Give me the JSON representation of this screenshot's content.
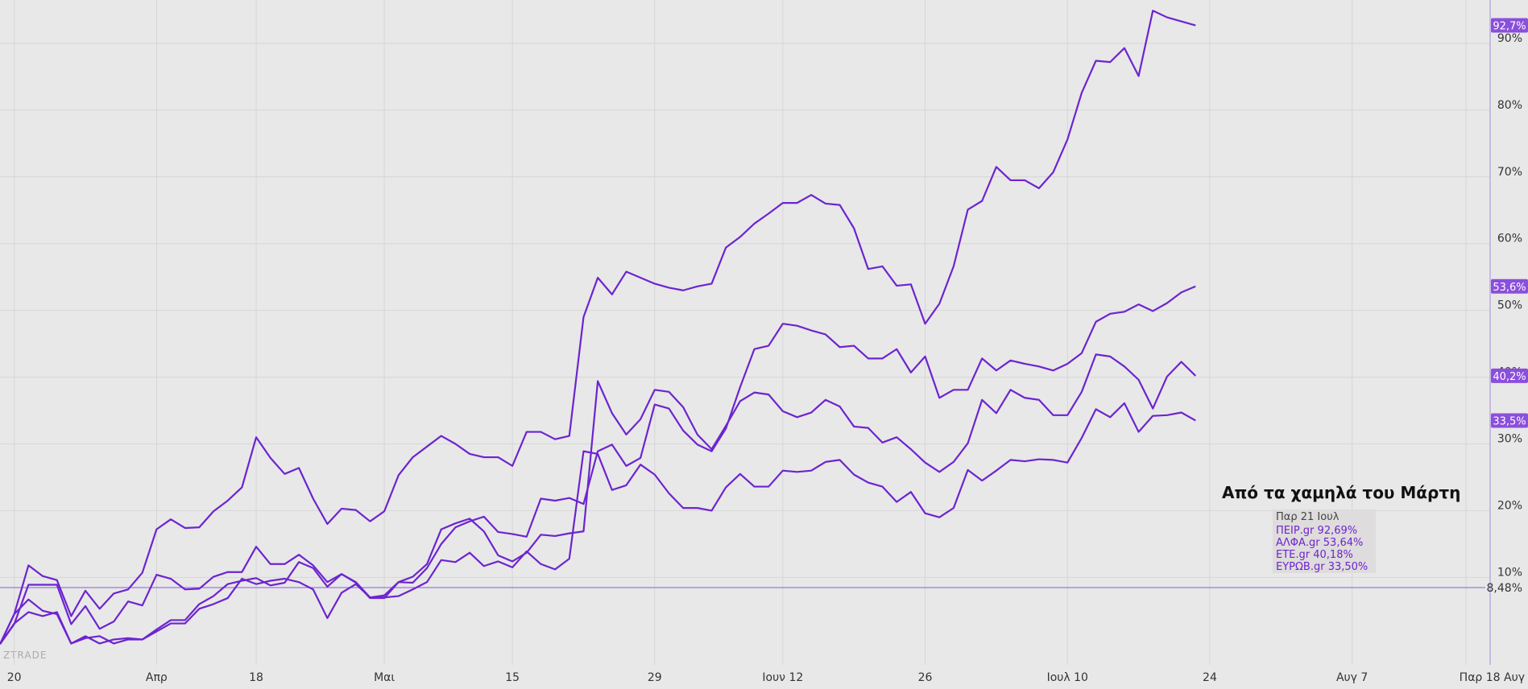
{
  "chart_data": {
    "type": "line",
    "title": "Από τα χαμηλά του Μάρτη",
    "date_label": "Παρ 21 Ιουλ",
    "watermark": "ZTRADE",
    "categories": [
      null,
      "20",
      null,
      null,
      null,
      null,
      null,
      null,
      null,
      null,
      null,
      "Απρ",
      null,
      null,
      null,
      null,
      null,
      null,
      "18",
      null,
      null,
      null,
      null,
      null,
      null,
      null,
      null,
      "Μαι",
      null,
      null,
      null,
      null,
      null,
      null,
      null,
      null,
      "15",
      null,
      null,
      null,
      null,
      null,
      null,
      null,
      null,
      null,
      "29",
      null,
      null,
      null,
      null,
      null,
      null,
      null,
      null,
      "Ιουν 12",
      null,
      null,
      null,
      null,
      null,
      null,
      null,
      null,
      null,
      "26",
      null,
      null,
      null,
      null,
      null,
      null,
      null,
      null,
      null,
      "Ιουλ 10",
      null,
      null,
      null,
      null,
      null,
      null,
      null,
      null,
      null,
      "24",
      null,
      null,
      null,
      null,
      null,
      null,
      null,
      null,
      null,
      "Αυγ 7",
      null,
      null,
      null,
      null,
      null,
      null,
      null,
      "Παρ 18 Αυγ",
      null
    ],
    "series": [
      {
        "name": "ΠΕΙΡ.gr",
        "legend_value": "92,69%",
        "last_label": "92,7%",
        "color": "#6d24cf",
        "values": [
          0,
          4.5,
          11.8,
          10.2,
          9.6,
          4.2,
          8,
          5.3,
          7.6,
          8.2,
          10.7,
          17.2,
          18.7,
          17.4,
          17.5,
          19.9,
          21.5,
          23.5,
          31,
          27.9,
          25.5,
          26.4,
          21.8,
          18,
          20.3,
          20.1,
          18.4,
          19.9,
          25.3,
          28,
          29.6,
          31.2,
          30,
          28.5,
          28,
          28,
          26.7,
          31.8,
          31.8,
          30.7,
          31.2,
          49,
          54.9,
          52.4,
          55.8,
          54.9,
          54,
          53.4,
          53,
          53.6,
          54,
          59.4,
          61,
          63,
          64.5,
          66.1,
          66.1,
          67.3,
          66,
          65.8,
          62.3,
          56.2,
          56.6,
          53.7,
          53.9,
          48,
          51,
          56.6,
          65.1,
          66.4,
          71.5,
          69.5,
          69.5,
          68.3,
          70.7,
          75.6,
          82.6,
          87.4,
          87.2,
          89.3,
          85.1,
          94.9,
          93.9,
          93.3,
          92.7,
          null,
          null,
          null,
          null,
          null,
          null,
          null,
          null,
          null,
          null,
          null,
          null,
          null,
          null,
          null,
          null,
          null,
          null,
          null,
          null
        ]
      },
      {
        "name": "ΑΛΦΑ.gr",
        "legend_value": "53,64%",
        "last_label": "53,6%",
        "color": "#6d24cf",
        "values": [
          0,
          3,
          8.9,
          8.9,
          8.9,
          3,
          5.7,
          2.3,
          3.4,
          6.4,
          5.8,
          10.4,
          9.8,
          8.2,
          8.3,
          10.1,
          10.8,
          10.8,
          14.6,
          12,
          12,
          13.4,
          11.8,
          9.3,
          10.5,
          9.2,
          6.9,
          6.9,
          9.3,
          9.2,
          11.4,
          15,
          17.5,
          18.4,
          19.1,
          16.8,
          16.5,
          16.1,
          21.8,
          21.5,
          21.9,
          21,
          28.9,
          29.9,
          26.7,
          27.9,
          35.9,
          35.3,
          32,
          29.9,
          28.9,
          32.3,
          38.5,
          44.2,
          44.7,
          48,
          47.7,
          47,
          46.4,
          44.5,
          44.7,
          42.8,
          42.8,
          44.2,
          40.7,
          43.1,
          36.9,
          38.1,
          38.1,
          42.8,
          41,
          42.5,
          42,
          41.6,
          41,
          42,
          43.6,
          48.3,
          49.5,
          49.8,
          50.9,
          49.9,
          51.1,
          52.7,
          53.6,
          null,
          null,
          null,
          null,
          null,
          null,
          null,
          null,
          null,
          null,
          null,
          null,
          null,
          null,
          null,
          null,
          null,
          null,
          null,
          null
        ]
      },
      {
        "name": "ΕΤΕ.gr",
        "legend_value": "40,18%",
        "last_label": "40,2%",
        "color": "#6d24cf",
        "values": [
          0,
          4.5,
          6.7,
          5,
          4.5,
          0.1,
          1.2,
          0.1,
          0.7,
          0.9,
          0.7,
          2.2,
          3.6,
          3.6,
          6,
          7.2,
          9,
          9.5,
          9.9,
          8.8,
          9.2,
          12.3,
          11.4,
          8.6,
          10.5,
          9.3,
          7,
          7.3,
          9.3,
          10.1,
          12,
          17.2,
          18.1,
          18.8,
          16.9,
          13.3,
          12.4,
          13.7,
          16.4,
          16.2,
          16.6,
          16.9,
          39.4,
          34.6,
          31.4,
          33.7,
          38.1,
          37.8,
          35.5,
          31.4,
          29.2,
          32.7,
          36.4,
          37.7,
          37.4,
          34.9,
          34,
          34.7,
          36.6,
          35.6,
          32.6,
          32.4,
          30.2,
          31,
          29.2,
          27.2,
          25.8,
          27.3,
          30.1,
          36.6,
          34.6,
          38.1,
          36.9,
          36.6,
          34.3,
          34.3,
          37.8,
          43.4,
          43.1,
          41.6,
          39.6,
          35.3,
          40.1,
          42.3,
          40.2,
          null,
          null,
          null,
          null,
          null,
          null,
          null,
          null,
          null,
          null,
          null,
          null,
          null,
          null,
          null,
          null,
          null,
          null,
          null,
          null
        ]
      },
      {
        "name": "ΕΥΡΩΒ.gr",
        "legend_value": "33,50%",
        "last_label": "33,5%",
        "color": "#6d24cf",
        "values": [
          0,
          3.1,
          4.8,
          4.2,
          4.8,
          0.1,
          0.9,
          1.2,
          0.1,
          0.7,
          0.7,
          1.9,
          3.1,
          3.1,
          5.3,
          6,
          6.9,
          9.8,
          9,
          9.5,
          9.8,
          9.3,
          8.2,
          3.9,
          7.7,
          9,
          7,
          7,
          7.2,
          8.2,
          9.3,
          12.6,
          12.3,
          13.7,
          11.7,
          12.4,
          11.5,
          13.9,
          12,
          11.2,
          12.8,
          28.9,
          28.5,
          23.1,
          23.8,
          26.9,
          25.4,
          22.6,
          20.4,
          20.4,
          20,
          23.5,
          25.5,
          23.6,
          23.6,
          26,
          25.8,
          26,
          27.3,
          27.6,
          25.4,
          24.2,
          23.6,
          21.3,
          22.8,
          19.6,
          19,
          20.4,
          26.1,
          24.5,
          26,
          27.6,
          27.4,
          27.7,
          27.6,
          27.2,
          30.9,
          35.2,
          34,
          36.1,
          31.8,
          34.2,
          34.3,
          34.7,
          33.5,
          null,
          null,
          null,
          null,
          null,
          null,
          null,
          null,
          null,
          null,
          null,
          null,
          null,
          null,
          null,
          null,
          null,
          null,
          null,
          null
        ]
      }
    ],
    "hline": {
      "value": 8.48,
      "label": "8,48%",
      "color": "#8a5ae0"
    },
    "ylim": [
      -3.1,
      96.5
    ],
    "yticks": [
      {
        "value": 10,
        "label": "10%"
      },
      {
        "value": 20,
        "label": "20%"
      },
      {
        "value": 30,
        "label": "30%"
      },
      {
        "value": 40,
        "label": "40%"
      },
      {
        "value": 50,
        "label": "50%"
      },
      {
        "value": 60,
        "label": "60%"
      },
      {
        "value": 70,
        "label": "70%"
      },
      {
        "value": 80,
        "label": "80%"
      },
      {
        "value": 90,
        "label": "90%"
      }
    ],
    "grid": true
  }
}
